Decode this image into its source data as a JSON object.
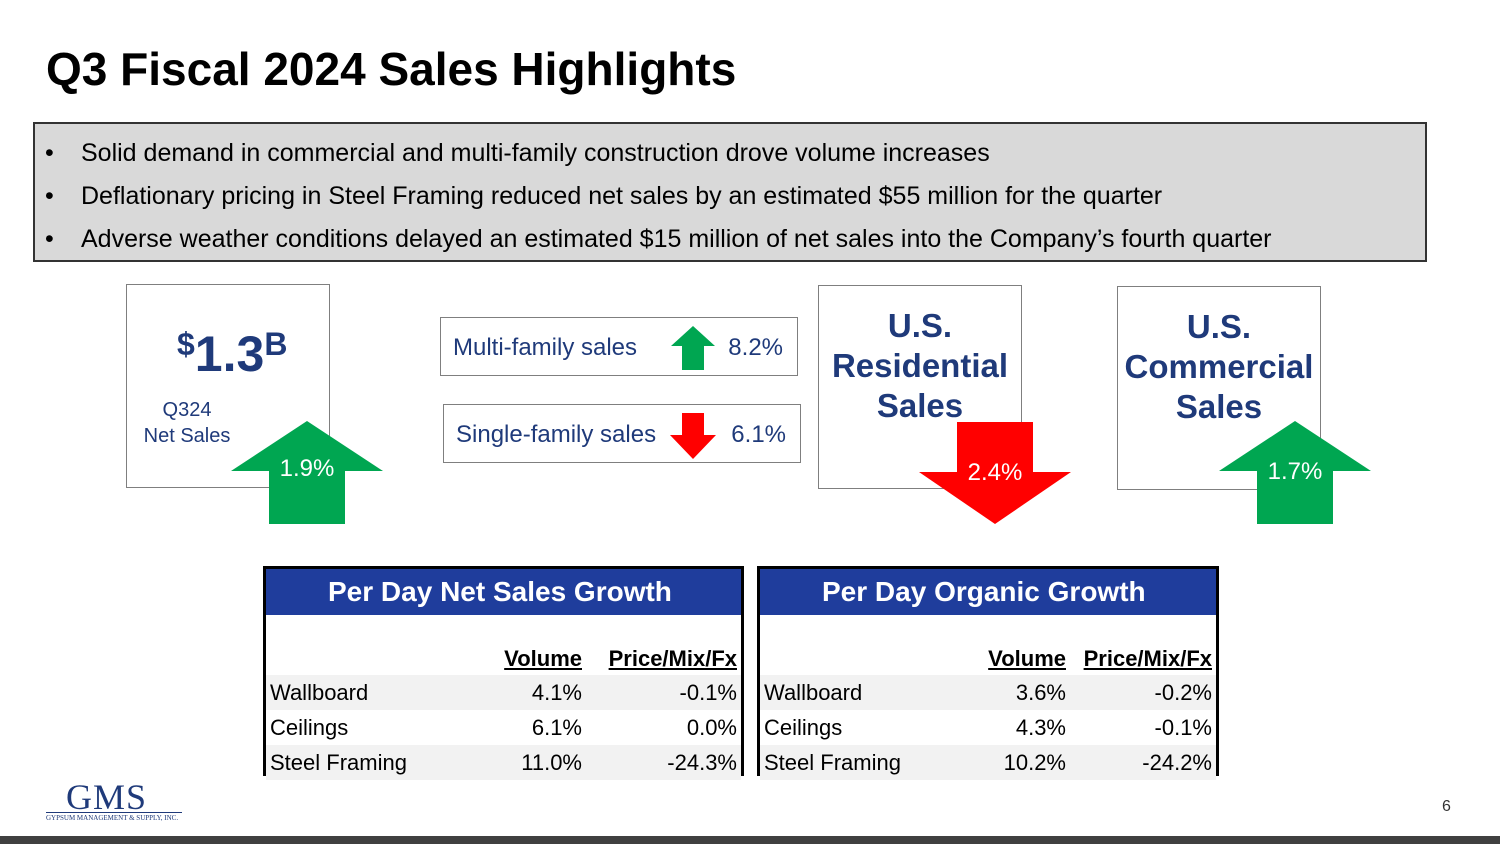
{
  "title": "Q3 Fiscal 2024 Sales Highlights",
  "bullets": [
    "Solid demand in commercial and multi-family construction drove volume increases",
    "Deflationary pricing in Steel Framing reduced net sales by an estimated $55 million for the quarter",
    "Adverse weather conditions delayed an estimated $15 million of net sales into the Company’s fourth quarter"
  ],
  "net_sales": {
    "currency": "$",
    "value": "1.3",
    "unit": "B",
    "label_line1": "Q324",
    "label_line2": "Net Sales",
    "change": "1.9%",
    "direction": "up"
  },
  "multi_family": {
    "label": "Multi-family sales",
    "value": "8.2%",
    "direction": "up"
  },
  "single_family": {
    "label": "Single-family sales",
    "value": "6.1%",
    "direction": "down"
  },
  "us_residential": {
    "line1": "U.S.",
    "line2": "Residential",
    "line3": "Sales",
    "change": "2.4%",
    "direction": "down"
  },
  "us_commercial": {
    "line1": "U.S.",
    "line2": "Commercial",
    "line3": "Sales",
    "change": "1.7%",
    "direction": "up"
  },
  "tables": {
    "net_sales_growth": {
      "title": "Per Day Net Sales Growth",
      "columns": [
        "Volume",
        "Price/Mix/Fx"
      ],
      "rows": [
        {
          "label": "Wallboard",
          "volume": "4.1%",
          "price": "-0.1%"
        },
        {
          "label": "Ceilings",
          "volume": "6.1%",
          "price": "0.0%"
        },
        {
          "label": "Steel Framing",
          "volume": "11.0%",
          "price": "-24.3%"
        }
      ]
    },
    "organic_growth": {
      "title": "Per Day Organic Growth",
      "columns": [
        "Volume",
        "Price/Mix/Fx"
      ],
      "rows": [
        {
          "label": "Wallboard",
          "volume": "3.6%",
          "price": "-0.2%"
        },
        {
          "label": "Ceilings",
          "volume": "4.3%",
          "price": "-0.1%"
        },
        {
          "label": "Steel Framing",
          "volume": "10.2%",
          "price": "-24.2%"
        }
      ]
    }
  },
  "logo": {
    "mark": "GMS",
    "subtitle": "GYPSUM MANAGEMENT & SUPPLY, INC."
  },
  "page_number": "6",
  "colors": {
    "navy": "#1f3a7a",
    "table_header": "#1f3d9c",
    "up": "#00a651",
    "down": "#ff0000"
  },
  "icons": {
    "up": "arrow-up-icon",
    "down": "arrow-down-icon"
  }
}
